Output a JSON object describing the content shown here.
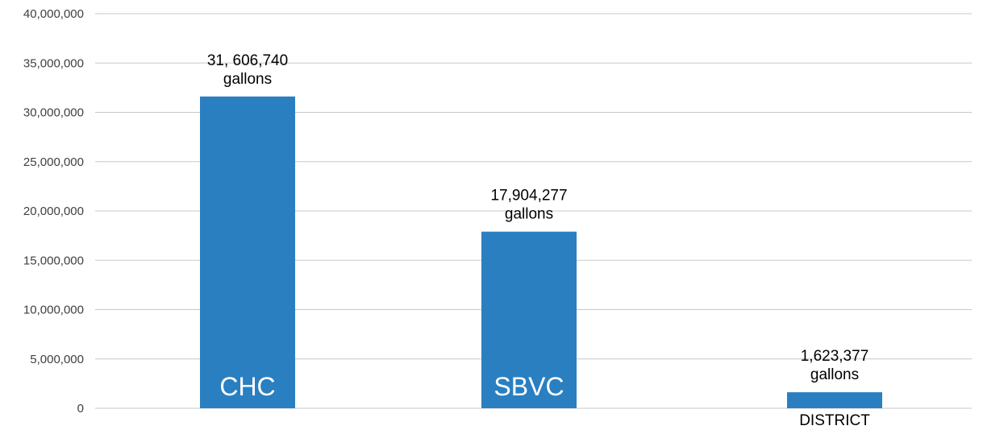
{
  "chart_data": {
    "type": "bar",
    "categories": [
      "CHC",
      "SBVC",
      "DISTRICT"
    ],
    "values": [
      31606740,
      17904277,
      1623377
    ],
    "data_labels": [
      [
        "31, 606,740",
        "gallons"
      ],
      [
        "17,904,277",
        "gallons"
      ],
      [
        "1,623,377",
        "gallons"
      ]
    ],
    "category_label_placement": [
      "inside-bar-bottom",
      "inside-bar-bottom",
      "below-axis"
    ],
    "ylim": [
      0,
      40000000
    ],
    "yticks": [
      0,
      5000000,
      10000000,
      15000000,
      20000000,
      25000000,
      30000000,
      35000000,
      40000000
    ],
    "ytick_labels": [
      "0",
      "5,000,000",
      "10,000,000",
      "15,000,000",
      "20,000,000",
      "25,000,000",
      "30,000,000",
      "35,000,000",
      "40,000,000"
    ],
    "grid": true,
    "bar_color": "#2a7fc1",
    "grid_color": "#c8c8c8"
  }
}
